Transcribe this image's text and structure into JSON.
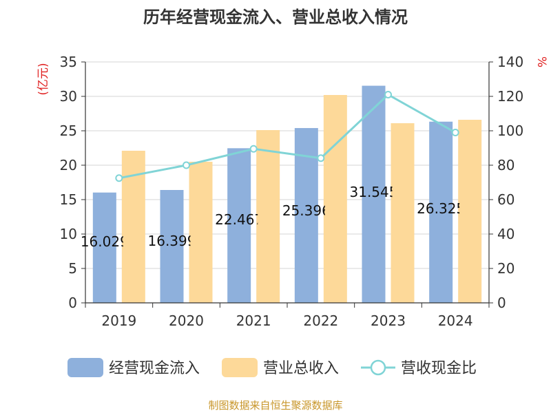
{
  "chart_data": {
    "type": "bar",
    "title": "历年经营现金流入、营业总收入情况",
    "categories": [
      "2019",
      "2020",
      "2021",
      "2022",
      "2023",
      "2024"
    ],
    "y_left": {
      "unit": "(亿元)",
      "ylim": [
        0,
        35
      ],
      "ticks": [
        0,
        5,
        10,
        15,
        20,
        25,
        30,
        35
      ]
    },
    "y_right": {
      "unit": "%",
      "ylim": [
        0,
        140
      ],
      "ticks": [
        0,
        20,
        40,
        60,
        80,
        100,
        120,
        140
      ]
    },
    "grid": true,
    "legend_position": "bottom",
    "series": [
      {
        "name": "经营现金流入",
        "type": "bar",
        "axis": "left",
        "color": "#8eb0dc",
        "values": [
          16.029,
          16.399,
          22.467,
          25.396,
          31.545,
          26.325
        ],
        "labels": [
          "16.029",
          "16.399",
          "22.467",
          "25.396",
          "31.545",
          "26.325"
        ]
      },
      {
        "name": "营业总收入",
        "type": "bar",
        "axis": "left",
        "color": "#fdd999",
        "values": [
          22.1,
          20.5,
          25.1,
          30.2,
          26.1,
          26.6
        ]
      },
      {
        "name": "营收现金比",
        "type": "line",
        "axis": "right",
        "color": "#80d4d6",
        "values": [
          72.5,
          80.0,
          89.5,
          84.1,
          121.0,
          99.0
        ]
      }
    ],
    "source": "制图数据来自恒生聚源数据库"
  }
}
